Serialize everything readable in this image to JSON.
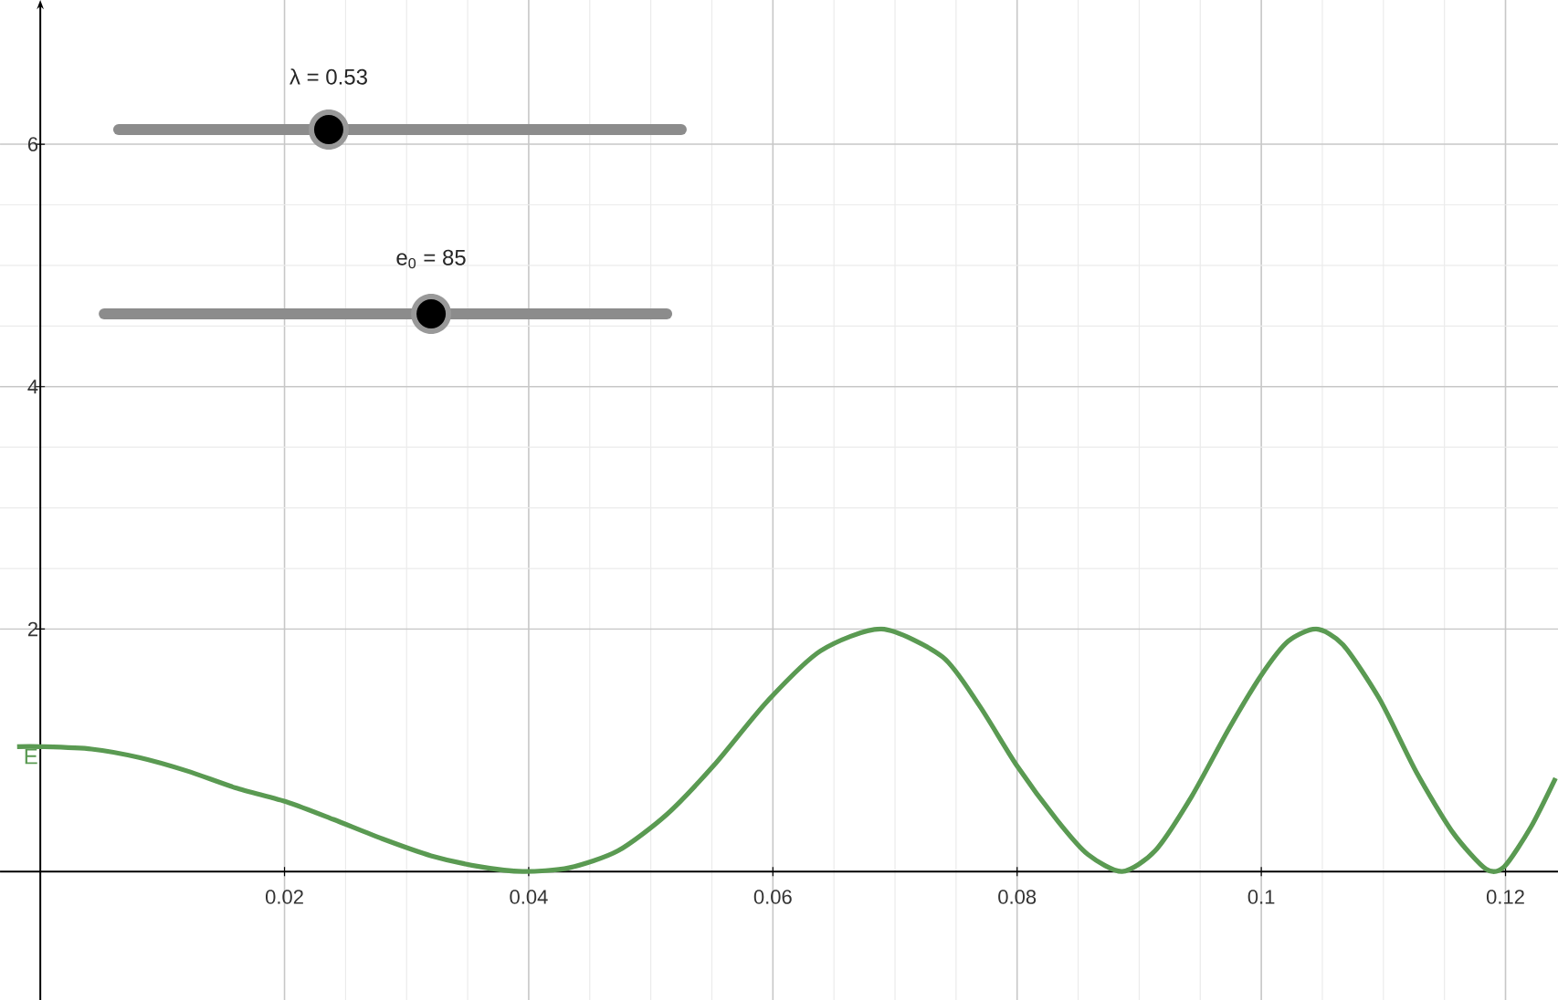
{
  "chart_data": {
    "type": "line",
    "xlim": [
      -0.0033,
      0.1243
    ],
    "ylim": [
      -1.06,
      7.19
    ],
    "xticks": [
      0.02,
      0.04,
      0.06,
      0.08,
      0.1,
      0.12
    ],
    "yticks": [
      2,
      4,
      6
    ],
    "grid": true,
    "legend": false,
    "marker": "none",
    "line_style": "solid",
    "series": [
      {
        "name": "E",
        "color": "#5a9a52",
        "x": [
          -0.0019,
          0,
          0.0042,
          0.0081,
          0.012,
          0.016,
          0.0203,
          0.024,
          0.028,
          0.032,
          0.036,
          0.0395,
          0.0433,
          0.0473,
          0.0513,
          0.0552,
          0.0595,
          0.0639,
          0.0689,
          0.0739,
          0.0769,
          0.08,
          0.0833,
          0.0858,
          0.0886,
          0.0913,
          0.0943,
          0.0973,
          0.1,
          0.1022,
          0.1045,
          0.1067,
          0.1097,
          0.1127,
          0.1157,
          0.1184,
          0.1199,
          0.1221,
          0.1241
        ],
        "values": [
          1.03,
          1.03,
          1.01,
          0.94,
          0.83,
          0.69,
          0.57,
          0.43,
          0.27,
          0.13,
          0.04,
          0,
          0.03,
          0.17,
          0.47,
          0.88,
          1.4,
          1.82,
          2.0,
          1.77,
          1.37,
          0.87,
          0.42,
          0.14,
          0,
          0.17,
          0.62,
          1.17,
          1.62,
          1.9,
          2.0,
          1.87,
          1.42,
          0.82,
          0.32,
          0.02,
          0.04,
          0.37,
          0.77
        ]
      }
    ],
    "annotations": [
      "λ = 0.53",
      "e$_{0}$ = 85"
    ]
  }
}
